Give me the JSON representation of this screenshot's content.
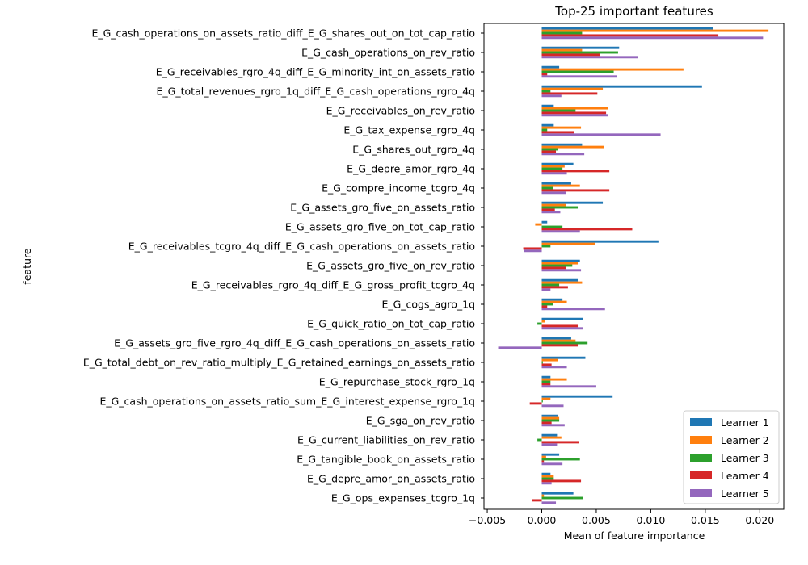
{
  "chart_data": {
    "type": "bar",
    "orientation": "horizontal",
    "title": "Top-25 important features",
    "xlabel": "Mean of feature importance",
    "ylabel": "feature",
    "xlim": [
      -0.0053,
      0.0222
    ],
    "xticks": [
      -0.005,
      0.0,
      0.005,
      0.01,
      0.015,
      0.02
    ],
    "xtick_labels": [
      "−0.005",
      "0.000",
      "0.005",
      "0.010",
      "0.015",
      "0.020"
    ],
    "grid": false,
    "legend_position": "lower-right",
    "categories": [
      "E_G_cash_operations_on_assets_ratio_diff_E_G_shares_out_on_tot_cap_ratio",
      "E_G_cash_operations_on_rev_ratio",
      "E_G_receivables_rgro_4q_diff_E_G_minority_int_on_assets_ratio",
      "E_G_total_revenues_rgro_1q_diff_E_G_cash_operations_rgro_4q",
      "E_G_receivables_on_rev_ratio",
      "E_G_tax_expense_rgro_4q",
      "E_G_shares_out_rgro_4q",
      "E_G_depre_amor_rgro_4q",
      "E_G_compre_income_tcgro_4q",
      "E_G_assets_gro_five_on_assets_ratio",
      "E_G_assets_gro_five_on_tot_cap_ratio",
      "E_G_receivables_tcgro_4q_diff_E_G_cash_operations_on_assets_ratio",
      "E_G_assets_gro_five_on_rev_ratio",
      "E_G_receivables_rgro_4q_diff_E_G_gross_profit_tcgro_4q",
      "E_G_cogs_agro_1q",
      "E_G_quick_ratio_on_tot_cap_ratio",
      "E_G_assets_gro_five_rgro_4q_diff_E_G_cash_operations_on_assets_ratio",
      "E_G_total_debt_on_rev_ratio_multiply_E_G_retained_earnings_on_assets_ratio",
      "E_G_repurchase_stock_rgro_1q",
      "E_G_cash_operations_on_assets_ratio_sum_E_G_interest_expense_rgro_1q",
      "E_G_sga_on_rev_ratio",
      "E_G_current_liabilities_on_rev_ratio",
      "E_G_tangible_book_on_assets_ratio",
      "E_G_depre_amor_on_assets_ratio",
      "E_G_ops_expenses_tcgro_1q"
    ],
    "series": [
      {
        "name": "Learner 1",
        "color": "#1f77b4",
        "values": [
          0.0157,
          0.0071,
          0.0016,
          0.0147,
          0.0011,
          0.0011,
          0.0037,
          0.0029,
          0.0027,
          0.0056,
          0.0005,
          0.0107,
          0.0035,
          0.0033,
          0.0019,
          0.0038,
          0.0027,
          0.004,
          0.0008,
          0.0065,
          0.0015,
          0.0014,
          0.0016,
          0.0008,
          0.0029
        ]
      },
      {
        "name": "Learner 2",
        "color": "#ff7f0e",
        "values": [
          0.0208,
          0.0037,
          0.013,
          0.0056,
          0.0061,
          0.0036,
          0.0057,
          0.0021,
          0.0035,
          0.0022,
          -0.0006,
          0.0049,
          0.0033,
          0.0037,
          0.0023,
          0.0003,
          0.0031,
          0.0015,
          0.0023,
          0.0008,
          0.0016,
          0.0018,
          0.0004,
          0.0011,
          0.0002
        ]
      },
      {
        "name": "Learner 3",
        "color": "#2ca02c",
        "values": [
          0.0037,
          0.007,
          0.0066,
          0.0008,
          0.0031,
          0.0005,
          0.0015,
          0.0019,
          0.001,
          0.0033,
          0.0019,
          0.0008,
          0.0028,
          0.0016,
          0.001,
          -0.0004,
          0.0042,
          0.0001,
          0.0008,
          0.0001,
          0.0016,
          -0.0004,
          0.0035,
          0.0011,
          0.0038
        ]
      },
      {
        "name": "Learner 4",
        "color": "#d62728",
        "values": [
          0.0162,
          0.0053,
          0.0005,
          0.0051,
          0.0059,
          0.003,
          0.0013,
          0.0062,
          0.0062,
          0.0012,
          0.0083,
          -0.0017,
          0.0022,
          0.0024,
          0.0005,
          0.0033,
          0.0033,
          0.0009,
          0.0008,
          -0.0011,
          0.0009,
          0.0034,
          0.0002,
          0.0036,
          -0.0009
        ]
      },
      {
        "name": "Learner 5",
        "color": "#9467bd",
        "values": [
          0.0203,
          0.0088,
          0.0069,
          0.0018,
          0.0061,
          0.0109,
          0.0039,
          0.0023,
          0.0022,
          0.0017,
          0.0035,
          -0.0016,
          0.0036,
          0.0008,
          0.0058,
          0.0038,
          -0.004,
          0.0023,
          0.005,
          0.002,
          0.0021,
          0.0014,
          0.0019,
          0.0009,
          0.0013
        ]
      }
    ]
  }
}
